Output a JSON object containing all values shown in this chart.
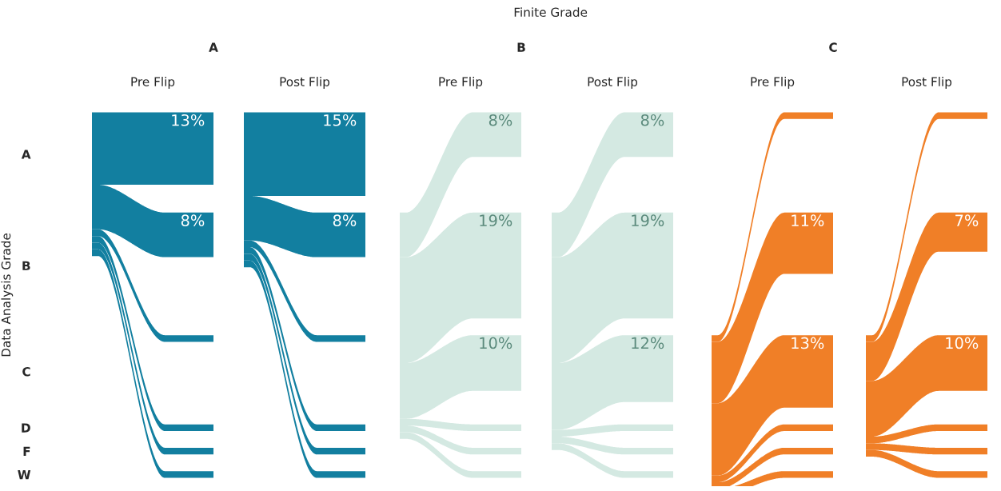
{
  "chart_data": [
    {
      "type": "other",
      "title": "A",
      "subtitle": "Pre Flip",
      "ylabel": "Data Analysis Grade",
      "annotations": [
        "Finite Grade"
      ],
      "color": "#127fa0",
      "y_categories": [
        "A",
        "B",
        "C",
        "D",
        "F",
        "W"
      ],
      "values": [
        13,
        8,
        null,
        null,
        null,
        null
      ],
      "value_labels": [
        "13%",
        "8%",
        null,
        null,
        null,
        null
      ]
    },
    {
      "type": "other",
      "subtitle": "Post Flip",
      "color": "#127fa0",
      "values": [
        15,
        8,
        null,
        null,
        null,
        null
      ],
      "value_labels": [
        "15%",
        "8%",
        null,
        null,
        null,
        null
      ]
    },
    {
      "type": "other",
      "title": "B",
      "subtitle": "Pre Flip",
      "color": "#d4e9e2",
      "values": [
        8,
        19,
        10,
        null,
        null,
        null
      ],
      "value_labels": [
        "8%",
        "19%",
        "10%",
        null,
        null,
        null
      ]
    },
    {
      "type": "other",
      "subtitle": "Post Flip",
      "color": "#d4e9e2",
      "values": [
        8,
        19,
        12,
        null,
        null,
        null
      ],
      "value_labels": [
        "8%",
        "19%",
        "12%",
        null,
        null,
        null
      ]
    },
    {
      "type": "other",
      "title": "C",
      "subtitle": "Pre Flip",
      "color": "#f07f27",
      "values": [
        null,
        11,
        13,
        null,
        null,
        null
      ],
      "value_labels": [
        null,
        "11%",
        "13%",
        null,
        null,
        null
      ]
    },
    {
      "type": "other",
      "subtitle": "Post Flip",
      "color": "#f07f27",
      "values": [
        null,
        7,
        10,
        null,
        null,
        null
      ],
      "value_labels": [
        null,
        "7%",
        "10%",
        null,
        null,
        null
      ]
    }
  ]
}
